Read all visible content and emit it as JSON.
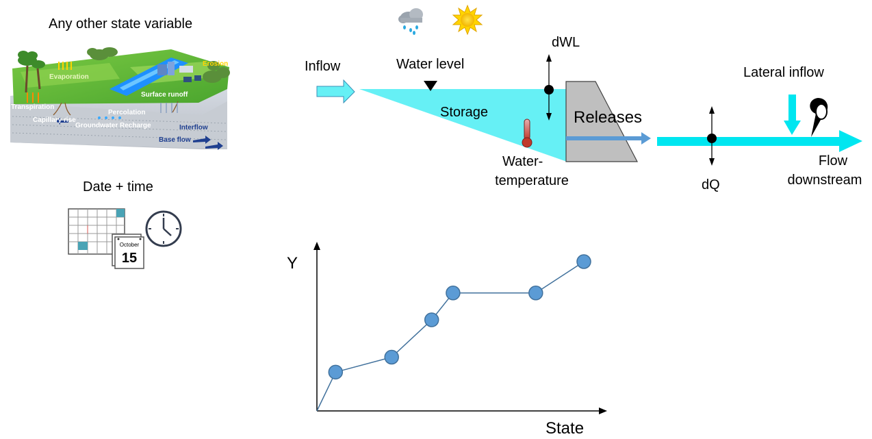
{
  "left_panel": {
    "state_variable_title": "Any other state variable",
    "datetime_title": "Date + time",
    "landscape_labels": {
      "evaporation": "Evaporation",
      "erosion": "Erosion",
      "surface_runoff": "Surface runoff",
      "transpiration": "Transpiration",
      "percolation": "Percolation",
      "capillary_rise": "Capillary rise",
      "groundwater_recharge": "Groundwater Recharge",
      "interflow": "Interflow",
      "base_flow": "Base flow"
    },
    "calendar_month": "October",
    "calendar_day": "15",
    "icons": [
      "landscape-illustration",
      "calendar-icon",
      "clock-icon"
    ]
  },
  "reservoir": {
    "inflow": "Inflow",
    "water_level": "Water level",
    "dwl": "dWL",
    "storage": "Storage",
    "releases": "Releases",
    "water_temperature_line1": "Water-",
    "water_temperature_line2": "temperature",
    "lateral_inflow": "Lateral inflow",
    "dq": "dQ",
    "flow_downstream_line1": "Flow",
    "flow_downstream_line2": "downstream",
    "icons": [
      "rain-cloud-icon",
      "sun-icon",
      "thermometer-icon",
      "gauge-marker-icon",
      "dam-icon"
    ],
    "colors": {
      "water": "#66F0F5",
      "river": "#00E6F0",
      "release_arrow": "#5B9BD5",
      "dam": "#BFBFBF"
    }
  },
  "chart_data": {
    "type": "line",
    "xlabel": "State",
    "ylabel": "Y",
    "points": [
      {
        "x": 0.07,
        "y": 0.26
      },
      {
        "x": 0.28,
        "y": 0.36
      },
      {
        "x": 0.43,
        "y": 0.61
      },
      {
        "x": 0.51,
        "y": 0.79
      },
      {
        "x": 0.82,
        "y": 0.79
      },
      {
        "x": 1.0,
        "y": 1.0
      }
    ],
    "line_origin": {
      "x": 0,
      "y": 0
    },
    "xlim": [
      0,
      1.11
    ],
    "ylim": [
      0,
      1.12
    ],
    "grid": false,
    "colors": {
      "marker": "#5B9BD5",
      "line": "#41719C"
    }
  }
}
